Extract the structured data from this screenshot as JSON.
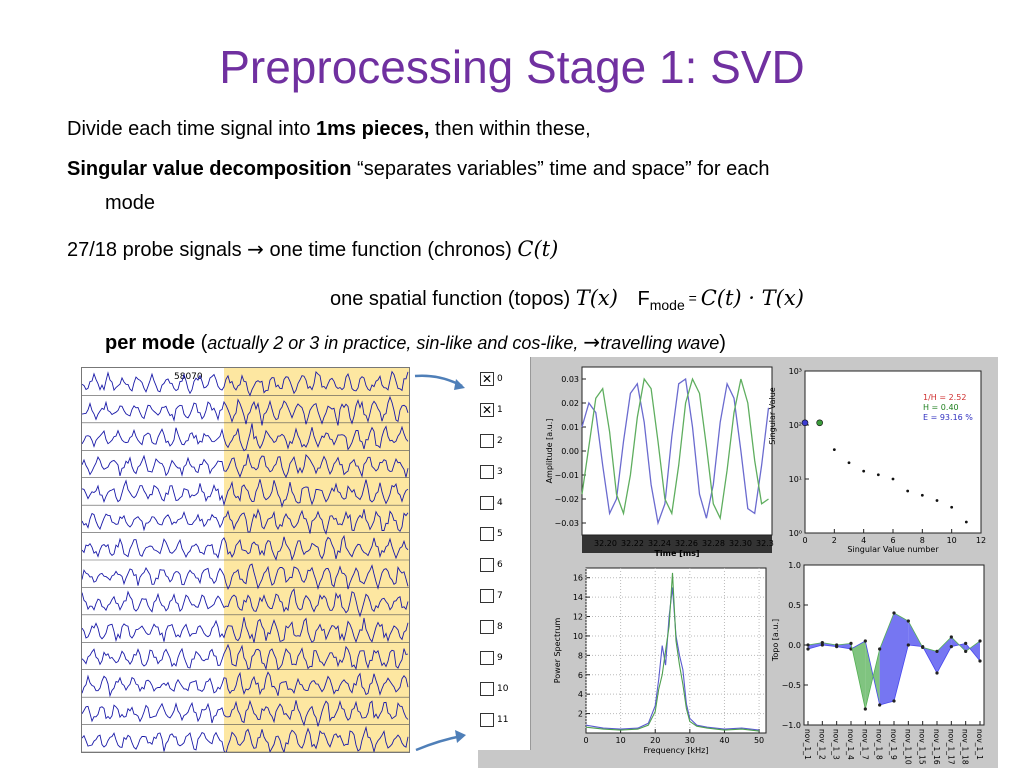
{
  "slide": {
    "title": "Preprocessing Stage 1: SVD",
    "line1": {
      "pre": "Divide each time signal into ",
      "bold": "1ms pieces,",
      "post": " then within these,"
    },
    "line2": {
      "bold": "Singular value decomposition",
      "post": " “separates variables” time and space” for each",
      "cont": "mode"
    },
    "line3": {
      "pre": "27/18 probe signals ",
      "arrow": "→",
      "post": " one time function (chronos) ",
      "math": "C(t)"
    },
    "line4": {
      "pre": "one spatial function (topos) ",
      "math_topos": "T(x)",
      "f": "F",
      "sub": "mode",
      "eq": " = ",
      "math_product": "C(t) · T(x)"
    },
    "line5": {
      "bold": "per mode",
      "open": " (",
      "italic": "actually 2 or 3 in practice, sin-like and cos-like, ",
      "arrow": "→",
      "italic2": "travelling wave",
      "close": ")"
    }
  },
  "signals": {
    "shot_label": "58070",
    "highlight_color": "#fde7a1",
    "trace_color": "#1a1aa8"
  },
  "selector": {
    "items": [
      {
        "label": "0",
        "checked": true
      },
      {
        "label": "1",
        "checked": true
      },
      {
        "label": "2",
        "checked": false
      },
      {
        "label": "3",
        "checked": false
      },
      {
        "label": "4",
        "checked": false
      },
      {
        "label": "5",
        "checked": false
      },
      {
        "label": "6",
        "checked": false
      },
      {
        "label": "7",
        "checked": false
      },
      {
        "label": "8",
        "checked": false
      },
      {
        "label": "9",
        "checked": false
      },
      {
        "label": "10",
        "checked": false
      },
      {
        "label": "11",
        "checked": false
      }
    ]
  },
  "chart_data": [
    {
      "type": "line",
      "title": "",
      "xlabel": "Time [ms]",
      "ylabel": "Amplitude [a.u.]",
      "xticks": [
        "32.20",
        "32.22",
        "32.24",
        "32.26",
        "32.28",
        "32.30",
        "32.3"
      ],
      "yticks": [
        "0.03",
        "0.02",
        "0.01",
        "0.00",
        "−0.01",
        "−0.02",
        "−0.03"
      ],
      "xlim": [
        32.2,
        32.31
      ],
      "ylim": [
        -0.035,
        0.035
      ],
      "series": [
        {
          "color": "#6b6bcf",
          "x": [
            32.2,
            32.204,
            32.208,
            32.212,
            32.216,
            32.22,
            32.224,
            32.228,
            32.232,
            32.236,
            32.24,
            32.244,
            32.248,
            32.252,
            32.256,
            32.26,
            32.264,
            32.268,
            32.272,
            32.276,
            32.28,
            32.284,
            32.288,
            32.292,
            32.296,
            32.3,
            32.304,
            32.308
          ],
          "y": [
            0.01,
            0.02,
            0.016,
            -0.006,
            -0.026,
            -0.02,
            0.004,
            0.024,
            0.028,
            0.012,
            -0.014,
            -0.03,
            -0.022,
            0.006,
            0.028,
            0.03,
            0.01,
            -0.018,
            -0.028,
            -0.014,
            0.012,
            0.028,
            0.022,
            0.0,
            -0.024,
            -0.026,
            -0.006,
            0.018
          ]
        },
        {
          "color": "#5fae5f",
          "x": [
            32.2,
            32.204,
            32.208,
            32.212,
            32.216,
            32.22,
            32.224,
            32.228,
            32.232,
            32.236,
            32.24,
            32.244,
            32.248,
            32.252,
            32.256,
            32.26,
            32.264,
            32.268,
            32.272,
            32.276,
            32.28,
            32.284,
            32.288,
            32.292,
            32.296,
            32.3,
            32.304,
            32.308
          ],
          "y": [
            -0.018,
            0.002,
            0.022,
            0.026,
            0.008,
            -0.018,
            -0.026,
            -0.01,
            0.014,
            0.03,
            0.026,
            0.004,
            -0.02,
            -0.026,
            -0.006,
            0.02,
            0.03,
            0.024,
            0.002,
            -0.022,
            -0.028,
            -0.008,
            0.016,
            0.03,
            0.02,
            -0.004,
            -0.022,
            -0.02
          ]
        }
      ]
    },
    {
      "type": "scatter",
      "title": "",
      "xlabel": "Singular Value number",
      "ylabel": "Singular Value",
      "xticks": [
        "0",
        "2",
        "4",
        "6",
        "8",
        "10",
        "12"
      ],
      "yticks": [
        "10⁰",
        "10¹",
        "10²",
        "10³"
      ],
      "ylog": true,
      "xlim": [
        0,
        12
      ],
      "ylim": [
        1,
        1000
      ],
      "annotations": [
        {
          "text": "1/H = 2.52",
          "color": "#d03030"
        },
        {
          "text": "H = 0.40",
          "color": "#208020"
        },
        {
          "text": "E = 93.16 %",
          "color": "#3030c0"
        }
      ],
      "x": [
        0,
        1,
        2,
        3,
        4,
        5,
        6,
        7,
        8,
        9,
        10,
        11
      ],
      "y": [
        110,
        110,
        35,
        20,
        14,
        12,
        10,
        6,
        5,
        4,
        3,
        1.6
      ]
    },
    {
      "type": "line",
      "title": "",
      "xlabel": "Frequency [kHz]",
      "ylabel": "Power Spectrum",
      "xticks": [
        "0",
        "10",
        "20",
        "30",
        "40",
        "50"
      ],
      "yticks": [
        "2",
        "4",
        "6",
        "8",
        "10",
        "12",
        "14",
        "16"
      ],
      "xlim": [
        0,
        52
      ],
      "ylim": [
        0,
        17
      ],
      "series": [
        {
          "color": "#5b5bd0",
          "x": [
            0,
            5,
            10,
            15,
            18,
            20,
            21,
            22,
            23,
            24,
            25,
            26,
            27,
            28,
            29,
            30,
            32,
            35,
            40,
            45,
            50
          ],
          "y": [
            0.8,
            0.5,
            0.4,
            0.5,
            1.0,
            2.8,
            5.5,
            9.0,
            7.0,
            12.0,
            15.0,
            10.0,
            8.0,
            6.5,
            3.0,
            1.5,
            0.8,
            0.6,
            0.4,
            0.5,
            0.3
          ]
        },
        {
          "color": "#4ea04e",
          "x": [
            0,
            5,
            10,
            15,
            18,
            20,
            21,
            22,
            23,
            24,
            25,
            26,
            27,
            28,
            29,
            30,
            32,
            35,
            40,
            45,
            50
          ],
          "y": [
            0.6,
            0.4,
            0.3,
            0.4,
            0.8,
            2.2,
            4.5,
            6.0,
            8.5,
            11.0,
            16.5,
            9.5,
            7.0,
            5.0,
            2.5,
            1.2,
            0.7,
            0.5,
            0.3,
            0.4,
            0.2
          ]
        }
      ]
    },
    {
      "type": "line",
      "title": "",
      "xlabel": "",
      "ylabel": "Topo [a.u.]",
      "xticks": [
        "nov_1_1",
        "nov_1_2",
        "nov_1_3",
        "nov_1_4",
        "nov_1_7",
        "nov_1_8",
        "nov_1_9",
        "nov_1_10",
        "nov_1_15",
        "nov_1_16",
        "nov_1_17",
        "nov_1_18",
        "nov_1_1"
      ],
      "yticks": [
        "1.0",
        "0.5",
        "0.0",
        "−0.5",
        "−1.0"
      ],
      "ylim": [
        -1.0,
        1.0
      ],
      "series": [
        {
          "color": "#4848ee",
          "values": [
            -0.05,
            0.0,
            -0.02,
            -0.05,
            0.05,
            -0.75,
            -0.7,
            0.0,
            -0.02,
            -0.35,
            -0.02,
            0.02,
            -0.2
          ]
        },
        {
          "color": "#55b055",
          "values": [
            0.0,
            0.03,
            0.0,
            0.02,
            -0.8,
            -0.05,
            0.4,
            0.3,
            -0.03,
            -0.08,
            0.1,
            -0.08,
            0.05
          ]
        }
      ]
    }
  ]
}
